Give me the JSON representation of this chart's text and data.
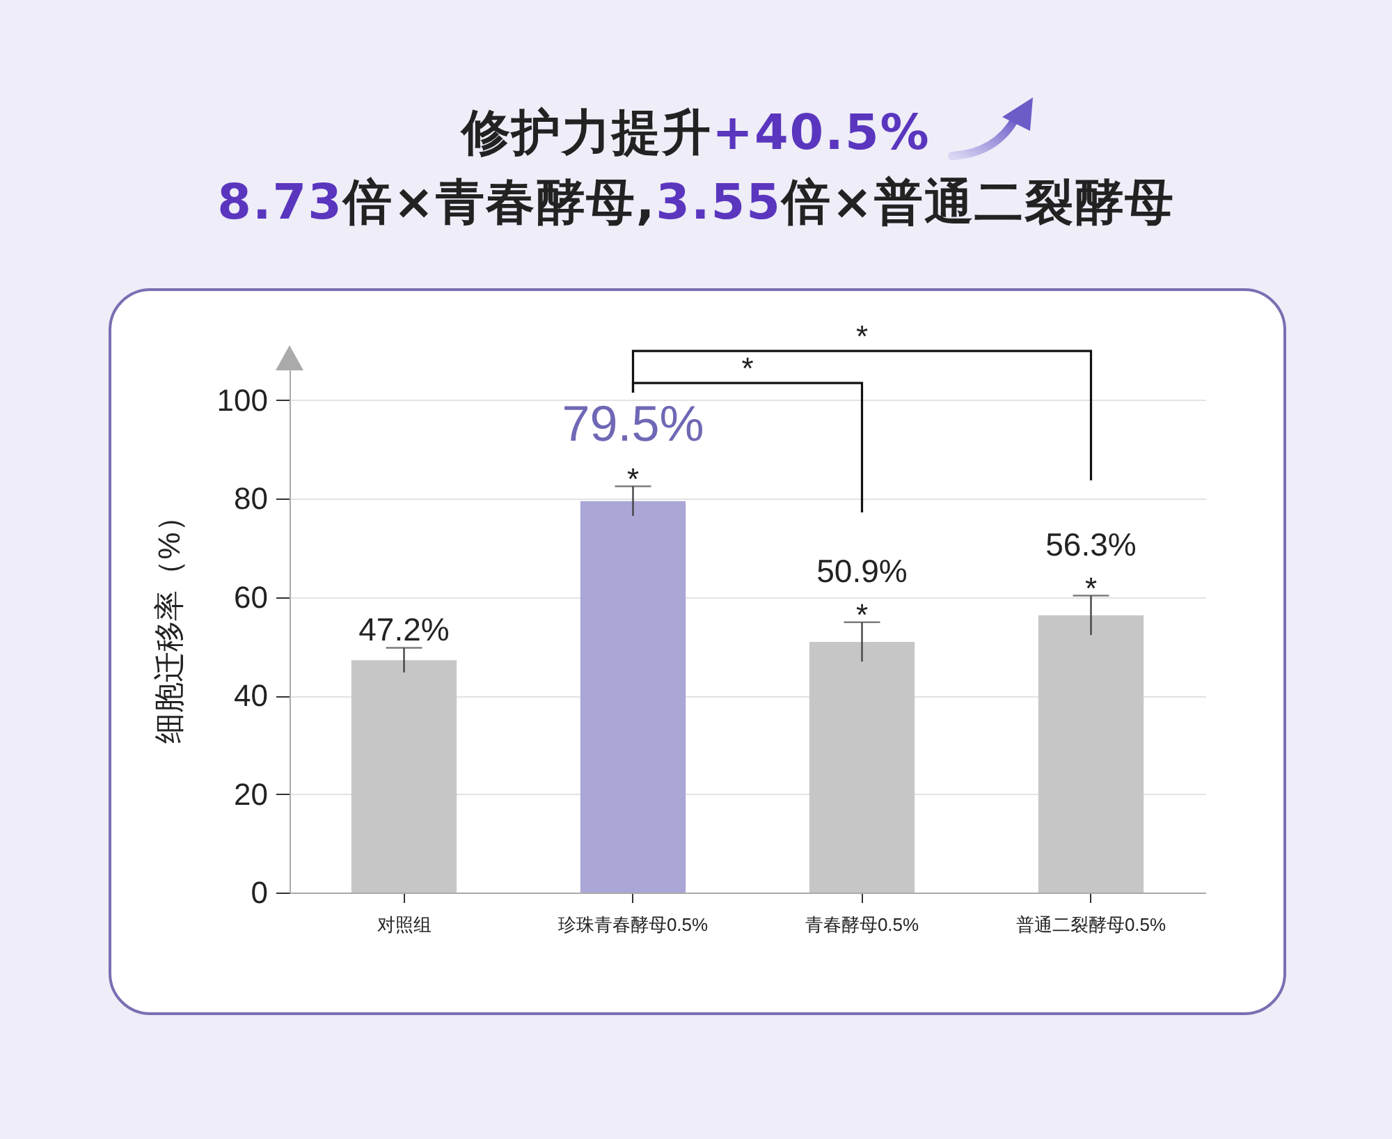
{
  "chart_data": {
    "type": "bar",
    "title": "修护力提升+40.5%",
    "subtitle": "8.73倍×青春酵母,3.55倍×普通二裂酵母",
    "ylabel": "细胞迁移率（%）",
    "categories": [
      "对照组",
      "珍珠青春酵母0.5%",
      "青春酵母0.5%",
      "普通二裂酵母0.5%"
    ],
    "values": [
      47.2,
      79.5,
      50.9,
      56.3
    ],
    "colors": [
      "#c6c6c6",
      "#aaa6d6",
      "#c6c6c6",
      "#c6c6c6"
    ],
    "errors": [
      2.5,
      3,
      4,
      4
    ],
    "value_labels": [
      "47.2%",
      "79.5%",
      "50.9%",
      "56.3%"
    ],
    "ylim": [
      0,
      110
    ],
    "yticks": [
      0,
      20,
      40,
      60,
      80,
      100
    ],
    "grid": "y",
    "annotations": [
      {
        "text": "*",
        "x": "珍珠青春酵母0.5%",
        "y": 82.5
      },
      {
        "text": "*",
        "x": "青春酵母0.5%",
        "y": 54.9
      },
      {
        "text": "*",
        "x": "普通二裂酵母0.5%",
        "y": 60.3
      },
      "*",
      "*"
    ]
  }
}
